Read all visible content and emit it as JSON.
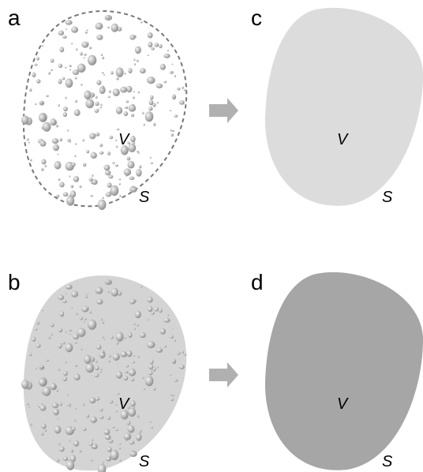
{
  "panels": [
    {
      "label": "a",
      "volume": "V",
      "surface": "S"
    },
    {
      "label": "b",
      "volume": "V",
      "surface": "S"
    },
    {
      "label": "c",
      "volume": "V",
      "surface": "S"
    },
    {
      "label": "d",
      "volume": "V",
      "surface": "S"
    }
  ]
}
